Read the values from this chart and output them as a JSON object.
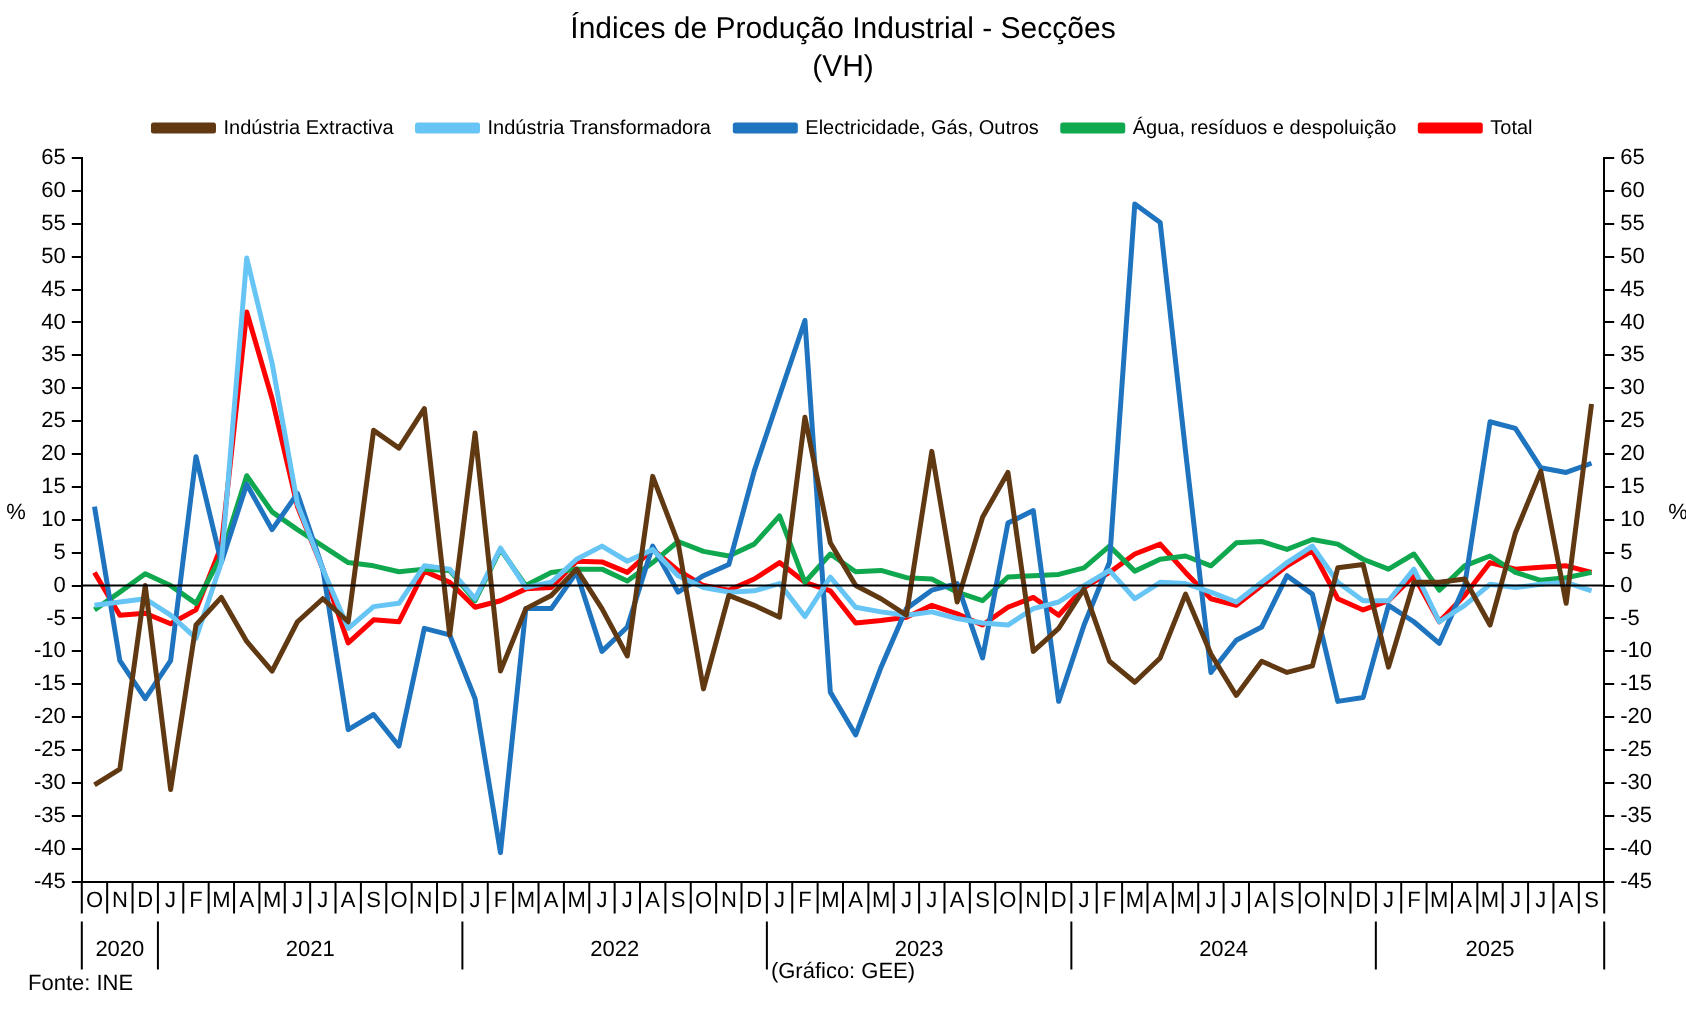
{
  "chart_data": {
    "type": "line",
    "title": "Índices de Produção Industrial - Secções",
    "subtitle": "(VH)",
    "ylabel": "%",
    "y2label": "%",
    "categories": [
      "O",
      "N",
      "D",
      "J",
      "F",
      "M",
      "A",
      "M",
      "J",
      "J",
      "A",
      "S",
      "O",
      "N",
      "D",
      "J",
      "F",
      "M",
      "A",
      "M",
      "J",
      "J",
      "A",
      "S",
      "O",
      "N",
      "D",
      "J",
      "F",
      "M",
      "A",
      "M",
      "J",
      "J",
      "A",
      "S",
      "O",
      "N",
      "D",
      "J",
      "F",
      "M",
      "A",
      "M",
      "J",
      "J",
      "A",
      "S",
      "O",
      "N",
      "D",
      "J",
      "F",
      "M",
      "A",
      "M",
      "J",
      "J",
      "A",
      "S"
    ],
    "ylim": [
      -45,
      65
    ],
    "yticks": [
      -45,
      -40,
      -35,
      -30,
      -25,
      -20,
      -15,
      -10,
      -5,
      0,
      5,
      10,
      15,
      20,
      25,
      30,
      35,
      40,
      45,
      50,
      55,
      60,
      65
    ],
    "y2lim": [
      -45,
      65
    ],
    "y2ticks": [
      -45,
      -40,
      -35,
      -30,
      -25,
      -20,
      -15,
      -10,
      -5,
      0,
      5,
      10,
      15,
      20,
      25,
      30,
      35,
      40,
      45,
      50,
      55,
      60,
      65
    ],
    "grid": false,
    "legend": "top",
    "marker": "none",
    "line_style": "solid",
    "ref_lines": [
      {
        "axis": "y",
        "value": 0,
        "color": "#000000"
      }
    ],
    "series": [
      {
        "name": "Indústria Extractiva",
        "color": "#603913",
        "values": [
          -30.3,
          -27.9,
          0,
          -31,
          -6,
          -1.8,
          -8.5,
          -13,
          -5.5,
          -2,
          -5.5,
          23.6,
          20.9,
          26.9,
          -7.5,
          23.2,
          -13,
          -3.5,
          -1.5,
          2.5,
          -3.5,
          -10.7,
          16.6,
          6.5,
          -15.7,
          -1.5,
          -3,
          -4.8,
          25.6,
          6.5,
          0,
          -2,
          -4.5,
          20.4,
          -2.5,
          10.4,
          17.2,
          -10,
          -6.5,
          -0.5,
          -11.5,
          -14.7,
          -11,
          -1.3,
          -10.4,
          -16.7,
          -11.5,
          -13.2,
          -12.2,
          2.7,
          3.2,
          -12.4,
          0.5,
          0.5,
          1,
          -6,
          8,
          17.4,
          -2.7,
          27.6
        ]
      },
      {
        "name": "Indústria Transformadora",
        "color": "#66c5f5",
        "values": [
          -3,
          -2.5,
          -2,
          -4.5,
          -8,
          3.5,
          49.8,
          33.8,
          12.4,
          2.5,
          -6.5,
          -3.2,
          -2.7,
          3,
          2.5,
          -2,
          5.7,
          -0.3,
          0.5,
          4,
          6,
          3.7,
          5.5,
          1.5,
          -0.3,
          -1,
          -0.8,
          0.3,
          -4.7,
          1.3,
          -3.3,
          -4,
          -4.5,
          -4,
          -5,
          -5.7,
          -6,
          -3.5,
          -2.5,
          0,
          2.3,
          -2,
          0.5,
          0.3,
          -1,
          -2.5,
          0.5,
          3.5,
          6,
          0.5,
          -2.3,
          -2.3,
          2.5,
          -5.5,
          -3,
          0.2,
          -0.3,
          0.2,
          0.5,
          -0.8
        ]
      },
      {
        "name": "Electricidade, Gás, Outros",
        "color": "#1f74c0",
        "values": [
          12,
          -11.4,
          -17.2,
          -11.4,
          19.6,
          3.5,
          15.4,
          8.5,
          14,
          2.5,
          -21.9,
          -19.6,
          -24.4,
          -6.5,
          -7.5,
          -17.2,
          -40.6,
          -3.5,
          -3.5,
          2,
          -10,
          -6.3,
          6,
          -1,
          1.5,
          3.2,
          17.4,
          28.9,
          40.3,
          -16.2,
          -22.7,
          -12.4,
          -3.5,
          -0.7,
          0.3,
          -11,
          9.5,
          11.4,
          -17.6,
          -6,
          3.5,
          58,
          55.2,
          20.4,
          -13.2,
          -8.3,
          -6.3,
          1.5,
          -1.3,
          -17.6,
          -17,
          -3,
          -5.5,
          -8.8,
          0,
          24.9,
          23.9,
          17.9,
          17.2,
          18.6
        ]
      },
      {
        "name": "Água, resíduos e despoluição",
        "color": "#10a84e",
        "values": [
          -3.7,
          -1,
          1.8,
          0,
          -2.7,
          4.5,
          16.7,
          11.2,
          8.5,
          6,
          3.5,
          3,
          2.1,
          2.5,
          2.3,
          -2.3,
          5.5,
          0,
          2,
          2.5,
          2.5,
          0.7,
          3.5,
          6.7,
          5.2,
          4.5,
          6.3,
          10.6,
          0.5,
          4.8,
          2.1,
          2.3,
          1.2,
          1,
          -1,
          -2.3,
          1.3,
          1.5,
          1.7,
          2.7,
          6,
          2.2,
          4,
          4.5,
          3,
          6.5,
          6.7,
          5.5,
          7,
          6.3,
          4,
          2.5,
          4.8,
          -0.7,
          3,
          4.5,
          2,
          0.8,
          1.2,
          2
        ]
      },
      {
        "name": "Total",
        "color": "#ff0000",
        "values": [
          2,
          -4.5,
          -4.2,
          -5.8,
          -3.7,
          6,
          41.6,
          28.4,
          12,
          2.5,
          -8.7,
          -5.2,
          -5.5,
          2.2,
          0.5,
          -3.3,
          -2.3,
          -0.5,
          -0.3,
          3.7,
          3.6,
          2,
          5.5,
          2.3,
          0,
          -0.7,
          1,
          3.5,
          0.5,
          -0.8,
          -5.7,
          -5.3,
          -4.8,
          -3,
          -4.3,
          -6,
          -3.3,
          -1.8,
          -4.5,
          -0.3,
          2,
          4.8,
          6.3,
          2,
          -2,
          -3,
          0,
          3,
          5.3,
          -2,
          -3.7,
          -2.3,
          1.5,
          -5.5,
          -1.5,
          3.5,
          2.5,
          2.8,
          3,
          2
        ]
      }
    ],
    "annotations": [
      "2020",
      "2021",
      "2022",
      "2023",
      "2024",
      "2025",
      "Fonte: INE",
      "(Gráfico: GEE)"
    ]
  }
}
